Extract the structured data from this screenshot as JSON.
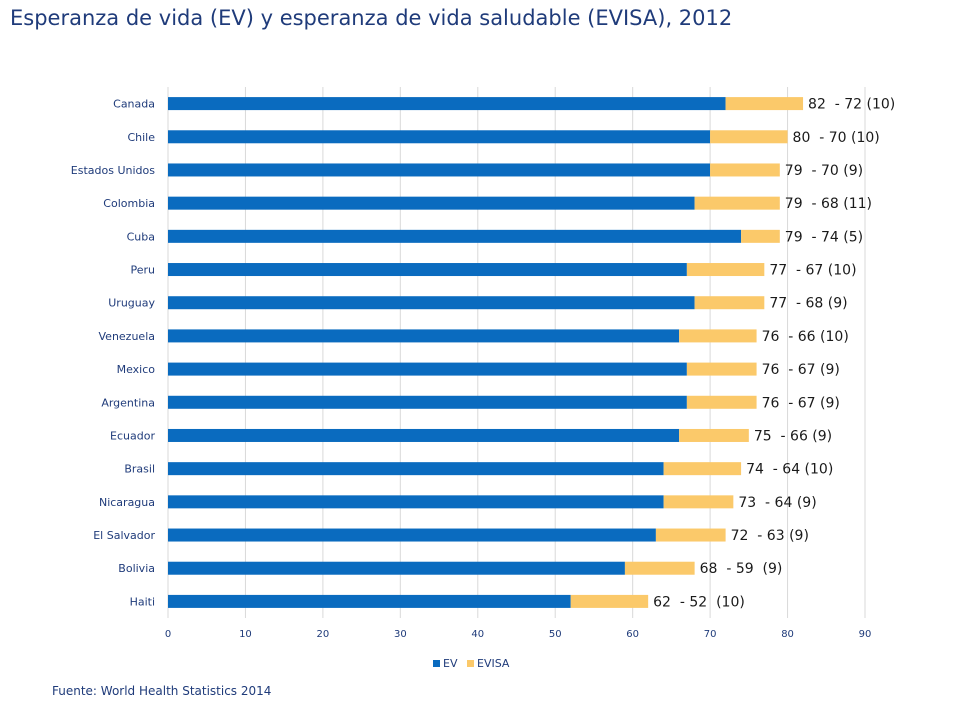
{
  "title": "Esperanza de vida (EV) y esperanza de vida saludable (EVISA), 2012",
  "source": "Fuente: World Health Statistics 2014",
  "colors": {
    "ev": "#0a6bbf",
    "evisa": "#fbc96a",
    "grid": "#d9d9d9",
    "text": "#1f3b7a"
  },
  "chart_data": {
    "type": "bar",
    "orientation": "horizontal",
    "stacked": true,
    "categories": [
      "Canada",
      "Chile",
      "Estados Unidos",
      "Colombia",
      "Cuba",
      "Peru",
      "Uruguay",
      "Venezuela",
      "Mexico",
      "Argentina",
      "Ecuador",
      "Brasil",
      "Nicaragua",
      "El Salvador",
      "Bolivia",
      "Haiti"
    ],
    "series": [
      {
        "name": "EV",
        "values": [
          72,
          70,
          70,
          68,
          74,
          67,
          68,
          66,
          67,
          67,
          66,
          64,
          64,
          63,
          59,
          52
        ]
      },
      {
        "name": "EVISA",
        "values": [
          10,
          10,
          9,
          11,
          5,
          10,
          9,
          10,
          9,
          9,
          9,
          10,
          9,
          9,
          9,
          10
        ]
      }
    ],
    "data_labels": [
      "82  - 72 (10)",
      "80  - 70 (10)",
      "79  - 70 (9)",
      "79  - 68 (11)",
      "79  - 74 (5)",
      "77  - 67 (10)",
      "77  - 68 (9)",
      "76  - 66 (10)",
      "76  - 67 (9)",
      "76  - 67 (9)",
      "75  - 66 (9)",
      "74  - 64 (10)",
      "73  - 64 (9)",
      "72  - 63 (9)",
      "68  - 59  (9)",
      "62  - 52  (10)"
    ],
    "x_ticks": [
      "0",
      "10",
      "20",
      "30",
      "40",
      "50",
      "60",
      "70",
      "80",
      "90"
    ],
    "xlim": [
      0,
      90
    ],
    "grid": true,
    "legend": "bottom"
  }
}
